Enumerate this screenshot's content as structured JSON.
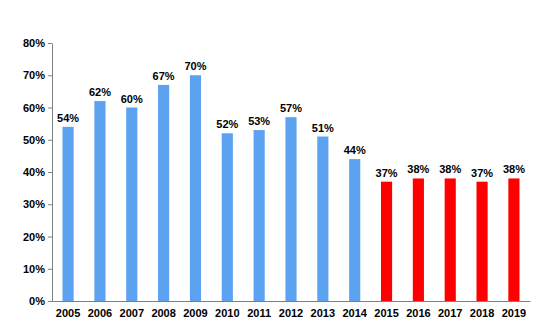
{
  "chart_data": {
    "type": "bar",
    "categories": [
      "2005",
      "2006",
      "2007",
      "2008",
      "2009",
      "2010",
      "2011",
      "2012",
      "2013",
      "2014",
      "2015",
      "2016",
      "2017",
      "2018",
      "2019"
    ],
    "values": [
      54,
      62,
      60,
      67,
      70,
      52,
      53,
      57,
      51,
      44,
      37,
      38,
      38,
      37,
      38
    ],
    "value_labels": [
      "54%",
      "62%",
      "60%",
      "67%",
      "70%",
      "52%",
      "53%",
      "57%",
      "51%",
      "44%",
      "37%",
      "38%",
      "38%",
      "37%",
      "38%"
    ],
    "colors": [
      "#5ba3f0",
      "#5ba3f0",
      "#5ba3f0",
      "#5ba3f0",
      "#5ba3f0",
      "#5ba3f0",
      "#5ba3f0",
      "#5ba3f0",
      "#5ba3f0",
      "#5ba3f0",
      "#ff0000",
      "#ff0000",
      "#ff0000",
      "#ff0000",
      "#ff0000"
    ],
    "ylim": [
      0,
      80
    ],
    "yticks": [
      {
        "value": 0,
        "label": "0%"
      },
      {
        "value": 10,
        "label": "10%"
      },
      {
        "value": 20,
        "label": "20%"
      },
      {
        "value": 30,
        "label": "30%"
      },
      {
        "value": 40,
        "label": "40%"
      },
      {
        "value": 50,
        "label": "50%"
      },
      {
        "value": 60,
        "label": "60%"
      },
      {
        "value": 70,
        "label": "70%"
      },
      {
        "value": 80,
        "label": "80%"
      }
    ],
    "data_labels": true,
    "grid": false
  }
}
